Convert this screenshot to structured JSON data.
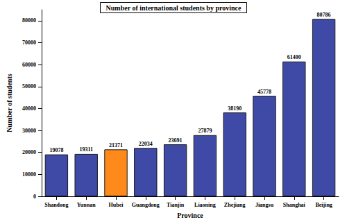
{
  "chart_data": {
    "type": "bar",
    "title": "Number of international students by province",
    "x_label": "Province",
    "y_label": "Number of students",
    "categories": [
      "Shandong",
      "Yunnan",
      "Hubei",
      "Guangdong",
      "Tianjin",
      "Liaoning",
      "Zhejiang",
      "Jiangsu",
      "Shanghai",
      "Beijing"
    ],
    "values": [
      19078,
      19311,
      21371,
      22034,
      23691,
      27879,
      38190,
      45778,
      61400,
      80786
    ],
    "colors": [
      "#3e4aa6",
      "#3e4aa6",
      "#ff8a1c",
      "#3e4aa6",
      "#3e4aa6",
      "#3e4aa6",
      "#3e4aa6",
      "#3e4aa6",
      "#3e4aa6",
      "#3e4aa6"
    ],
    "ylim": [
      0,
      85000
    ],
    "yticks": [
      0,
      10000,
      20000,
      30000,
      40000,
      50000,
      60000,
      70000,
      80000
    ],
    "grid": false,
    "data_labels": true
  }
}
